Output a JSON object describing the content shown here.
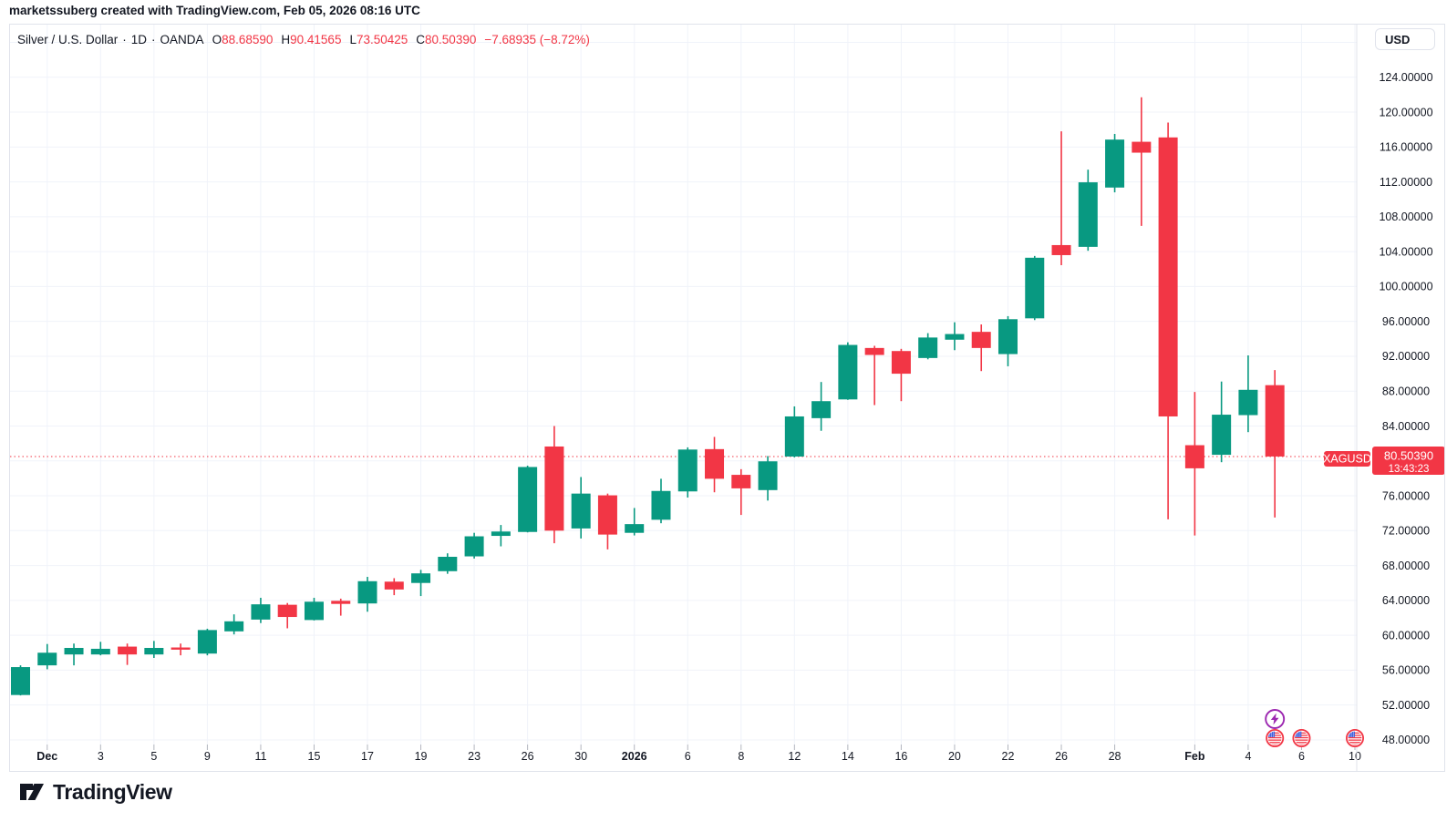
{
  "attribution": "marketssuberg created with TradingView.com, Feb 05, 2026 08:16 UTC",
  "legend": {
    "title": "Silver / U.S. Dollar",
    "separator": "·",
    "interval": "1D",
    "exchange": "OANDA",
    "ohlc": [
      {
        "label": "O",
        "value": "88.68590"
      },
      {
        "label": "H",
        "value": "90.41565"
      },
      {
        "label": "L",
        "value": "73.50425"
      },
      {
        "label": "C",
        "value": "80.50390"
      }
    ],
    "change": "−7.68935 (−8.72%)"
  },
  "price_axis": {
    "currency_button": "USD"
  },
  "footer": {
    "logo_text": "TradingView"
  },
  "colors": {
    "up": "#089981",
    "down": "#F23645",
    "text": "#131722",
    "grid": "#F0F3FA",
    "border": "#E0E3EB",
    "current_price": "#F23645",
    "event_purple": "#9C27B0",
    "us_flag_blue": "#3B5BDB"
  },
  "chart_data": {
    "type": "candlestick",
    "title": "Silver / U.S. Dollar",
    "ticker": "XAGUSD",
    "interval": "1D",
    "exchange": "OANDA",
    "price_line": {
      "price": 80.5039,
      "flag_label": "XAGUSD",
      "price_label": "80.50390",
      "countdown": "13:43:23"
    },
    "y_axis": {
      "currency": "USD",
      "tick_step": 4,
      "visible_range": [
        47.5,
        130.0
      ],
      "grid_top_price": 128,
      "grid_bottom_price": 48,
      "ticks": [
        {
          "price": 124,
          "label": "124.00000"
        },
        {
          "price": 120,
          "label": "120.00000"
        },
        {
          "price": 116,
          "label": "116.00000"
        },
        {
          "price": 112,
          "label": "112.00000"
        },
        {
          "price": 108,
          "label": "108.00000"
        },
        {
          "price": 104,
          "label": "104.00000"
        },
        {
          "price": 100,
          "label": "100.00000"
        },
        {
          "price": 96,
          "label": "96.00000"
        },
        {
          "price": 92,
          "label": "92.00000"
        },
        {
          "price": 88,
          "label": "88.00000"
        },
        {
          "price": 84,
          "label": "84.00000"
        },
        {
          "price": 76,
          "label": "76.00000"
        },
        {
          "price": 72,
          "label": "72.00000"
        },
        {
          "price": 68,
          "label": "68.00000"
        },
        {
          "price": 64,
          "label": "64.00000"
        },
        {
          "price": 60,
          "label": "60.00000"
        },
        {
          "price": 56,
          "label": "56.00000"
        },
        {
          "price": 52,
          "label": "52.00000"
        },
        {
          "price": 48,
          "label": "48.00000"
        }
      ]
    },
    "x_axis": {
      "labels": [
        {
          "index": 1,
          "text": "Dec",
          "bold": true
        },
        {
          "index": 3,
          "text": "3",
          "bold": false
        },
        {
          "index": 5,
          "text": "5",
          "bold": false
        },
        {
          "index": 7,
          "text": "9",
          "bold": false
        },
        {
          "index": 9,
          "text": "11",
          "bold": false
        },
        {
          "index": 11,
          "text": "15",
          "bold": false
        },
        {
          "index": 13,
          "text": "17",
          "bold": false
        },
        {
          "index": 15,
          "text": "19",
          "bold": false
        },
        {
          "index": 17,
          "text": "23",
          "bold": false
        },
        {
          "index": 19,
          "text": "26",
          "bold": false
        },
        {
          "index": 21,
          "text": "30",
          "bold": false
        },
        {
          "index": 23,
          "text": "2026",
          "bold": true
        },
        {
          "index": 25,
          "text": "6",
          "bold": false
        },
        {
          "index": 27,
          "text": "8",
          "bold": false
        },
        {
          "index": 29,
          "text": "12",
          "bold": false
        },
        {
          "index": 31,
          "text": "14",
          "bold": false
        },
        {
          "index": 33,
          "text": "16",
          "bold": false
        },
        {
          "index": 35,
          "text": "20",
          "bold": false
        },
        {
          "index": 37,
          "text": "22",
          "bold": false
        },
        {
          "index": 39,
          "text": "26",
          "bold": false
        },
        {
          "index": 41,
          "text": "28",
          "bold": false
        },
        {
          "index": 44,
          "text": "Feb",
          "bold": true
        },
        {
          "index": 46,
          "text": "4",
          "bold": false
        },
        {
          "index": 48,
          "text": "6",
          "bold": false
        },
        {
          "index": 50,
          "text": "10",
          "bold": false
        }
      ]
    },
    "events": [
      {
        "icon": "lightning",
        "candle_index": 47
      },
      {
        "icon": "us-flag",
        "candle_index": 47
      },
      {
        "icon": "us-flag",
        "candle_index": 48
      },
      {
        "icon": "us-flag",
        "candle_index": 50
      }
    ],
    "candles": [
      {
        "date": "Nov 28",
        "o": 53.15,
        "h": 56.55,
        "l": 53.1,
        "c": 56.35
      },
      {
        "date": "Dec 1",
        "o": 56.55,
        "h": 59.0,
        "l": 56.1,
        "c": 58.0
      },
      {
        "date": "Dec 2",
        "o": 57.8,
        "h": 59.05,
        "l": 56.55,
        "c": 58.55
      },
      {
        "date": "Dec 3",
        "o": 57.8,
        "h": 59.25,
        "l": 57.7,
        "c": 58.45
      },
      {
        "date": "Dec 4",
        "o": 58.7,
        "h": 59.05,
        "l": 56.6,
        "c": 57.8
      },
      {
        "date": "Dec 5",
        "o": 57.8,
        "h": 59.35,
        "l": 57.4,
        "c": 58.55
      },
      {
        "date": "Dec 8",
        "o": 58.6,
        "h": 59.05,
        "l": 57.7,
        "c": 58.35
      },
      {
        "date": "Dec 9",
        "o": 57.9,
        "h": 60.75,
        "l": 57.7,
        "c": 60.6
      },
      {
        "date": "Dec 10",
        "o": 60.45,
        "h": 62.4,
        "l": 60.1,
        "c": 61.6
      },
      {
        "date": "Dec 11",
        "o": 61.8,
        "h": 64.3,
        "l": 61.4,
        "c": 63.55
      },
      {
        "date": "Dec 12",
        "o": 63.5,
        "h": 63.7,
        "l": 60.8,
        "c": 62.1
      },
      {
        "date": "Dec 15",
        "o": 61.75,
        "h": 64.3,
        "l": 61.7,
        "c": 63.85
      },
      {
        "date": "Dec 16",
        "o": 63.95,
        "h": 64.2,
        "l": 62.25,
        "c": 63.6
      },
      {
        "date": "Dec 17",
        "o": 63.65,
        "h": 66.7,
        "l": 62.7,
        "c": 66.2
      },
      {
        "date": "Dec 18",
        "o": 66.15,
        "h": 66.55,
        "l": 64.6,
        "c": 65.25
      },
      {
        "date": "Dec 19",
        "o": 66.0,
        "h": 67.5,
        "l": 64.5,
        "c": 67.1
      },
      {
        "date": "Dec 22",
        "o": 67.35,
        "h": 69.4,
        "l": 67.05,
        "c": 69.0
      },
      {
        "date": "Dec 23",
        "o": 69.05,
        "h": 71.75,
        "l": 68.8,
        "c": 71.35
      },
      {
        "date": "Dec 24",
        "o": 71.4,
        "h": 72.65,
        "l": 70.2,
        "c": 71.9
      },
      {
        "date": "Dec 26",
        "o": 71.85,
        "h": 79.45,
        "l": 71.8,
        "c": 79.3
      },
      {
        "date": "Dec 29",
        "o": 81.65,
        "h": 84.0,
        "l": 70.55,
        "c": 72.0
      },
      {
        "date": "Dec 30",
        "o": 72.25,
        "h": 78.15,
        "l": 71.1,
        "c": 76.25
      },
      {
        "date": "Dec 31",
        "o": 76.05,
        "h": 76.25,
        "l": 69.85,
        "c": 71.55
      },
      {
        "date": "Jan 2",
        "o": 71.75,
        "h": 74.6,
        "l": 71.45,
        "c": 72.75
      },
      {
        "date": "Jan 5",
        "o": 73.25,
        "h": 77.95,
        "l": 72.85,
        "c": 76.55
      },
      {
        "date": "Jan 6",
        "o": 76.5,
        "h": 81.55,
        "l": 75.8,
        "c": 81.3
      },
      {
        "date": "Jan 7",
        "o": 81.35,
        "h": 82.75,
        "l": 76.4,
        "c": 77.95
      },
      {
        "date": "Jan 8",
        "o": 78.4,
        "h": 79.05,
        "l": 73.8,
        "c": 76.85
      },
      {
        "date": "Jan 9",
        "o": 76.65,
        "h": 80.55,
        "l": 75.45,
        "c": 79.95
      },
      {
        "date": "Jan 12",
        "o": 80.5,
        "h": 86.25,
        "l": 80.4,
        "c": 85.1
      },
      {
        "date": "Jan 13",
        "o": 84.9,
        "h": 89.05,
        "l": 83.45,
        "c": 86.85
      },
      {
        "date": "Jan 14",
        "o": 87.05,
        "h": 93.6,
        "l": 87.0,
        "c": 93.3
      },
      {
        "date": "Jan 15",
        "o": 92.95,
        "h": 93.2,
        "l": 86.4,
        "c": 92.15
      },
      {
        "date": "Jan 16",
        "o": 92.6,
        "h": 92.85,
        "l": 86.85,
        "c": 90.0
      },
      {
        "date": "Jan 19",
        "o": 91.8,
        "h": 94.65,
        "l": 91.65,
        "c": 94.15
      },
      {
        "date": "Jan 20",
        "o": 93.9,
        "h": 95.9,
        "l": 92.7,
        "c": 94.55
      },
      {
        "date": "Jan 21",
        "o": 94.8,
        "h": 95.65,
        "l": 90.3,
        "c": 92.95
      },
      {
        "date": "Jan 22",
        "o": 92.25,
        "h": 96.6,
        "l": 90.85,
        "c": 96.25
      },
      {
        "date": "Jan 23",
        "o": 96.35,
        "h": 103.5,
        "l": 96.15,
        "c": 103.3
      },
      {
        "date": "Jan 26",
        "o": 104.75,
        "h": 117.8,
        "l": 102.45,
        "c": 103.6
      },
      {
        "date": "Jan 27",
        "o": 104.55,
        "h": 113.4,
        "l": 104.1,
        "c": 111.95
      },
      {
        "date": "Jan 28",
        "o": 111.35,
        "h": 117.5,
        "l": 110.8,
        "c": 116.85
      },
      {
        "date": "Jan 29",
        "o": 116.6,
        "h": 121.7,
        "l": 106.95,
        "c": 115.35
      },
      {
        "date": "Jan 30",
        "o": 117.1,
        "h": 118.8,
        "l": 73.3,
        "c": 85.1
      },
      {
        "date": "Feb 2",
        "o": 81.8,
        "h": 87.9,
        "l": 71.45,
        "c": 79.15
      },
      {
        "date": "Feb 3",
        "o": 80.7,
        "h": 89.1,
        "l": 79.85,
        "c": 85.3
      },
      {
        "date": "Feb 4",
        "o": 85.25,
        "h": 92.1,
        "l": 83.3,
        "c": 88.15
      },
      {
        "date": "Feb 5",
        "o": 88.6859,
        "h": 90.41565,
        "l": 73.50425,
        "c": 80.5039
      }
    ]
  }
}
